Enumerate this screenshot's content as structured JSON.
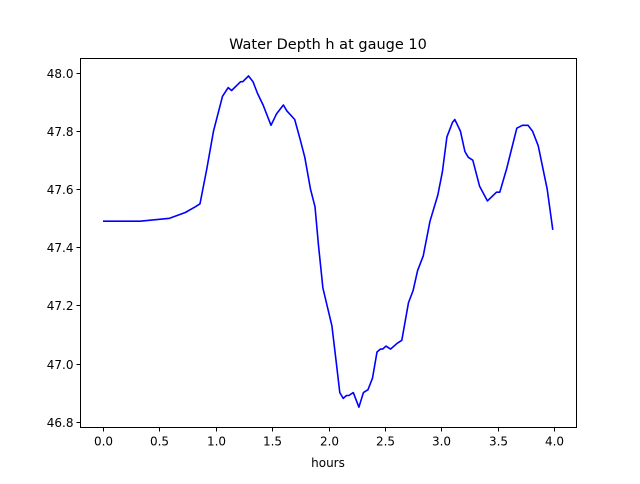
{
  "chart_data": {
    "type": "line",
    "title": "Water Depth h at gauge 10",
    "xlabel": "hours",
    "ylabel": "",
    "xlim": [
      -0.2,
      4.2
    ],
    "ylim": [
      46.78,
      48.05
    ],
    "xticks": [
      0.0,
      0.5,
      1.0,
      1.5,
      2.0,
      2.5,
      3.0,
      3.5,
      4.0
    ],
    "xtick_labels": [
      "0.0",
      "0.5",
      "1.0",
      "1.5",
      "2.0",
      "2.5",
      "3.0",
      "3.5",
      "4.0"
    ],
    "yticks": [
      46.8,
      47.0,
      47.2,
      47.4,
      47.6,
      47.8,
      48.0
    ],
    "ytick_labels": [
      "46.8",
      "47.0",
      "47.2",
      "47.4",
      "47.6",
      "47.8",
      "48.0"
    ],
    "grid": false,
    "series": [
      {
        "name": "h",
        "color": "#0000ff",
        "x": [
          0,
          0.33,
          0.59,
          0.73,
          0.82,
          0.86,
          0.92,
          0.98,
          1.06,
          1.11,
          1.14,
          1.22,
          1.24,
          1.29,
          1.33,
          1.37,
          1.42,
          1.49,
          1.54,
          1.6,
          1.63,
          1.7,
          1.75,
          1.79,
          1.84,
          1.88,
          1.91,
          1.95,
          2.03,
          2.07,
          2.1,
          2.13,
          2.16,
          2.18,
          2.22,
          2.25,
          2.27,
          2.31,
          2.35,
          2.39,
          2.43,
          2.46,
          2.48,
          2.51,
          2.55,
          2.61,
          2.65,
          2.71,
          2.75,
          2.79,
          2.84,
          2.9,
          2.97,
          3.01,
          3.05,
          3.1,
          3.12,
          3.17,
          3.21,
          3.24,
          3.28,
          3.34,
          3.41,
          3.49,
          3.52,
          3.58,
          3.67,
          3.72,
          3.77,
          3.81,
          3.86,
          3.94,
          3.99
        ],
        "y": [
          47.49,
          47.49,
          47.5,
          47.52,
          47.54,
          47.55,
          47.67,
          47.8,
          47.92,
          47.95,
          47.94,
          47.97,
          47.97,
          47.99,
          47.97,
          47.93,
          47.89,
          47.82,
          47.86,
          47.89,
          47.87,
          47.84,
          47.77,
          47.71,
          47.6,
          47.54,
          47.41,
          47.26,
          47.13,
          47.0,
          46.9,
          46.88,
          46.89,
          46.89,
          46.9,
          46.87,
          46.85,
          46.9,
          46.91,
          46.95,
          47.04,
          47.05,
          47.05,
          47.06,
          47.05,
          47.07,
          47.08,
          47.21,
          47.25,
          47.32,
          47.37,
          47.49,
          47.58,
          47.66,
          47.78,
          47.83,
          47.84,
          47.8,
          47.73,
          47.71,
          47.7,
          47.61,
          47.56,
          47.59,
          47.59,
          47.67,
          47.81,
          47.82,
          47.82,
          47.8,
          47.75,
          47.6,
          47.46
        ]
      }
    ]
  }
}
